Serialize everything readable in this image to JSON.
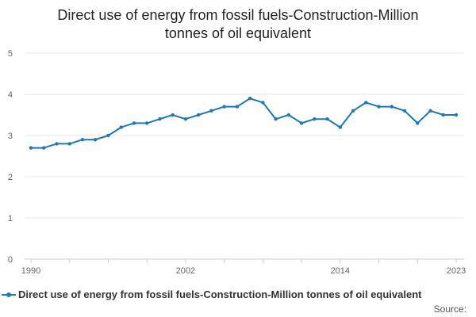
{
  "chart_data": {
    "type": "line",
    "title": "Direct use of energy from fossil fuels-Construction-Million tonnes of oil equivalent",
    "xlabel": "",
    "ylabel": "",
    "ylim": [
      0,
      5
    ],
    "yticks": [
      0,
      1,
      2,
      3,
      4,
      5
    ],
    "xlim": [
      1990,
      2023
    ],
    "xticks": [
      1990,
      2002,
      2014,
      2023
    ],
    "grid": true,
    "legend_position": "bottom",
    "series": [
      {
        "name": "Direct use of energy from fossil fuels-Construction-Million tonnes of oil equivalent",
        "color": "#1f77b4",
        "x": [
          1990,
          1991,
          1992,
          1993,
          1994,
          1995,
          1996,
          1997,
          1998,
          1999,
          2000,
          2001,
          2002,
          2003,
          2004,
          2005,
          2006,
          2007,
          2008,
          2009,
          2010,
          2011,
          2012,
          2013,
          2014,
          2015,
          2016,
          2017,
          2018,
          2019,
          2020,
          2021,
          2022,
          2023
        ],
        "values": [
          2.7,
          2.7,
          2.8,
          2.8,
          2.9,
          2.9,
          3.0,
          3.2,
          3.3,
          3.3,
          3.4,
          3.5,
          3.4,
          3.5,
          3.6,
          3.7,
          3.7,
          3.9,
          3.8,
          3.4,
          3.5,
          3.3,
          3.4,
          3.4,
          3.2,
          3.6,
          3.8,
          3.7,
          3.7,
          3.6,
          3.3,
          3.6,
          3.5,
          3.5
        ]
      }
    ]
  },
  "title_lines": [
    "Direct use of energy from fossil fuels-Construction-Million",
    "tonnes of oil equivalent"
  ],
  "legend": {
    "label": "Direct use of energy from fossil fuels-Construction-Million tonnes of oil equivalent"
  },
  "source": "Source:"
}
